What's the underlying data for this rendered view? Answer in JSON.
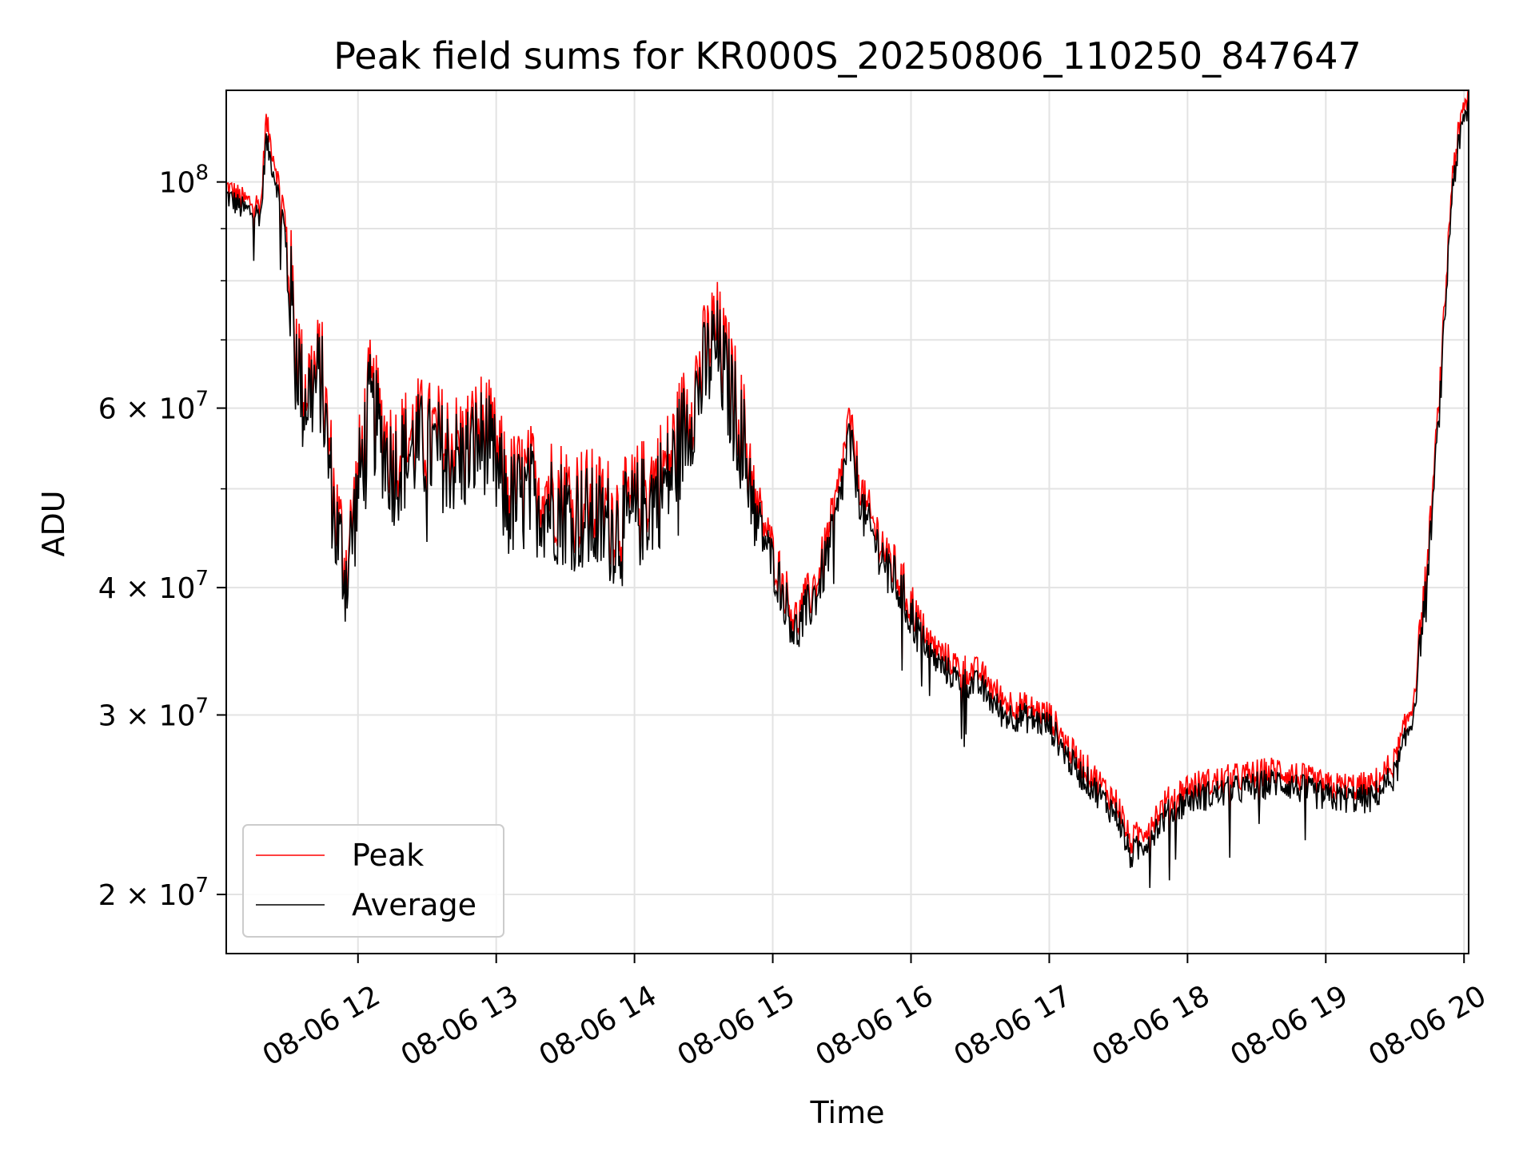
{
  "chart_data": {
    "type": "line",
    "title": "Peak field sums for KR000S_20250806_110250_847647",
    "xlabel": "Time",
    "ylabel": "ADU",
    "x_axis_kind": "time",
    "x_range": [
      "2025-08-06 11:02:50",
      "2025-08-06 20:02:00"
    ],
    "ylim": [
      17500000,
      123000000
    ],
    "yscale": "log",
    "grid": true,
    "legend_position": "lower-left",
    "x_ticks": [
      {
        "time": "2025-08-06 12:00",
        "label": "08-06 12"
      },
      {
        "time": "2025-08-06 13:00",
        "label": "08-06 13"
      },
      {
        "time": "2025-08-06 14:00",
        "label": "08-06 14"
      },
      {
        "time": "2025-08-06 15:00",
        "label": "08-06 15"
      },
      {
        "time": "2025-08-06 16:00",
        "label": "08-06 16"
      },
      {
        "time": "2025-08-06 17:00",
        "label": "08-06 17"
      },
      {
        "time": "2025-08-06 18:00",
        "label": "08-06 18"
      },
      {
        "time": "2025-08-06 19:00",
        "label": "08-06 19"
      },
      {
        "time": "2025-08-06 20:00",
        "label": "08-06 20"
      }
    ],
    "y_ticks_major": [
      {
        "value": 20000000,
        "base": "2 × 10",
        "exp": "7"
      },
      {
        "value": 30000000,
        "base": "3 × 10",
        "exp": "7"
      },
      {
        "value": 40000000,
        "base": "4 × 10",
        "exp": "7"
      },
      {
        "value": 60000000,
        "base": "6 × 10",
        "exp": "7"
      },
      {
        "value": 100000000,
        "base": "10",
        "exp": "8"
      }
    ],
    "y_gridlines": [
      20000000,
      30000000,
      40000000,
      50000000,
      60000000,
      70000000,
      80000000,
      90000000,
      100000000
    ],
    "series": [
      {
        "name": "Peak",
        "color": "#ff0000",
        "anchors": [
          [
            "2025-08-06 11:02:50",
            99000000
          ],
          [
            "2025-08-06 11:10",
            96000000
          ],
          [
            "2025-08-06 11:18",
            95000000
          ],
          [
            "2025-08-06 11:20",
            115000000
          ],
          [
            "2025-08-06 11:25",
            102000000
          ],
          [
            "2025-08-06 11:30",
            83000000
          ],
          [
            "2025-08-06 11:36",
            63000000
          ],
          [
            "2025-08-06 11:44",
            66000000
          ],
          [
            "2025-08-06 11:50",
            48000000
          ],
          [
            "2025-08-06 11:55",
            42000000
          ],
          [
            "2025-08-06 12:05",
            62000000
          ],
          [
            "2025-08-06 12:15",
            54000000
          ],
          [
            "2025-08-06 12:25",
            57000000
          ],
          [
            "2025-08-06 12:35",
            56000000
          ],
          [
            "2025-08-06 12:45",
            55000000
          ],
          [
            "2025-08-06 12:55",
            58000000
          ],
          [
            "2025-08-06 13:05",
            50000000
          ],
          [
            "2025-08-06 13:15",
            51000000
          ],
          [
            "2025-08-06 13:25",
            50000000
          ],
          [
            "2025-08-06 13:35",
            49000000
          ],
          [
            "2025-08-06 13:45",
            48000000
          ],
          [
            "2025-08-06 13:55",
            47000000
          ],
          [
            "2025-08-06 14:05",
            50000000
          ],
          [
            "2025-08-06 14:15",
            53000000
          ],
          [
            "2025-08-06 14:25",
            62000000
          ],
          [
            "2025-08-06 14:35",
            72000000
          ],
          [
            "2025-08-06 14:45",
            60000000
          ],
          [
            "2025-08-06 14:55",
            47000000
          ],
          [
            "2025-08-06 15:02",
            42000000
          ],
          [
            "2025-08-06 15:10",
            37000000
          ],
          [
            "2025-08-06 15:20",
            41000000
          ],
          [
            "2025-08-06 15:28",
            49000000
          ],
          [
            "2025-08-06 15:33",
            58000000
          ],
          [
            "2025-08-06 15:40",
            48000000
          ],
          [
            "2025-08-06 15:50",
            43000000
          ],
          [
            "2025-08-06 16:00",
            38500000
          ],
          [
            "2025-08-06 16:10",
            35000000
          ],
          [
            "2025-08-06 16:20",
            33500000
          ],
          [
            "2025-08-06 16:30",
            33000000
          ],
          [
            "2025-08-06 16:40",
            31000000
          ],
          [
            "2025-08-06 16:50",
            30500000
          ],
          [
            "2025-08-06 17:00",
            30000000
          ],
          [
            "2025-08-06 17:10",
            27500000
          ],
          [
            "2025-08-06 17:20",
            26000000
          ],
          [
            "2025-08-06 17:30",
            24500000
          ],
          [
            "2025-08-06 17:35",
            22500000
          ],
          [
            "2025-08-06 17:40",
            23000000
          ],
          [
            "2025-08-06 17:50",
            24500000
          ],
          [
            "2025-08-06 18:00",
            25500000
          ],
          [
            "2025-08-06 18:20",
            26000000
          ],
          [
            "2025-08-06 18:40",
            26500000
          ],
          [
            "2025-08-06 19:00",
            25500000
          ],
          [
            "2025-08-06 19:20",
            25500000
          ],
          [
            "2025-08-06 19:30",
            27000000
          ],
          [
            "2025-08-06 19:38",
            31000000
          ],
          [
            "2025-08-06 19:45",
            45000000
          ],
          [
            "2025-08-06 19:50",
            65000000
          ],
          [
            "2025-08-06 19:55",
            103000000
          ],
          [
            "2025-08-06 20:00",
            118000000
          ],
          [
            "2025-08-06 20:02",
            122000000
          ]
        ]
      },
      {
        "name": "Average",
        "color": "#000000",
        "anchors": [
          [
            "2025-08-06 11:02:50",
            97000000
          ],
          [
            "2025-08-06 11:10",
            94000000
          ],
          [
            "2025-08-06 11:18",
            93000000
          ],
          [
            "2025-08-06 11:20",
            110000000
          ],
          [
            "2025-08-06 11:25",
            99000000
          ],
          [
            "2025-08-06 11:30",
            80000000
          ],
          [
            "2025-08-06 11:36",
            61000000
          ],
          [
            "2025-08-06 11:44",
            64000000
          ],
          [
            "2025-08-06 11:50",
            46000000
          ],
          [
            "2025-08-06 11:55",
            41000000
          ],
          [
            "2025-08-06 12:05",
            60000000
          ],
          [
            "2025-08-06 12:15",
            52000000
          ],
          [
            "2025-08-06 12:25",
            55000000
          ],
          [
            "2025-08-06 12:35",
            54000000
          ],
          [
            "2025-08-06 12:45",
            53000000
          ],
          [
            "2025-08-06 12:55",
            56000000
          ],
          [
            "2025-08-06 13:05",
            48000000
          ],
          [
            "2025-08-06 13:15",
            49000000
          ],
          [
            "2025-08-06 13:25",
            48000000
          ],
          [
            "2025-08-06 13:35",
            47000000
          ],
          [
            "2025-08-06 13:45",
            46000000
          ],
          [
            "2025-08-06 13:55",
            45500000
          ],
          [
            "2025-08-06 14:05",
            48000000
          ],
          [
            "2025-08-06 14:15",
            51000000
          ],
          [
            "2025-08-06 14:25",
            60000000
          ],
          [
            "2025-08-06 14:35",
            69000000
          ],
          [
            "2025-08-06 14:45",
            58000000
          ],
          [
            "2025-08-06 14:55",
            45500000
          ],
          [
            "2025-08-06 15:02",
            41000000
          ],
          [
            "2025-08-06 15:10",
            36000000
          ],
          [
            "2025-08-06 15:20",
            40000000
          ],
          [
            "2025-08-06 15:28",
            47000000
          ],
          [
            "2025-08-06 15:33",
            56000000
          ],
          [
            "2025-08-06 15:40",
            46500000
          ],
          [
            "2025-08-06 15:50",
            42000000
          ],
          [
            "2025-08-06 16:00",
            37500000
          ],
          [
            "2025-08-06 16:10",
            34000000
          ],
          [
            "2025-08-06 16:20",
            32500000
          ],
          [
            "2025-08-06 16:30",
            32000000
          ],
          [
            "2025-08-06 16:40",
            30000000
          ],
          [
            "2025-08-06 16:50",
            29800000
          ],
          [
            "2025-08-06 17:00",
            29300000
          ],
          [
            "2025-08-06 17:10",
            26800000
          ],
          [
            "2025-08-06 17:20",
            25300000
          ],
          [
            "2025-08-06 17:30",
            23800000
          ],
          [
            "2025-08-06 17:35",
            21800000
          ],
          [
            "2025-08-06 17:40",
            22300000
          ],
          [
            "2025-08-06 17:50",
            23800000
          ],
          [
            "2025-08-06 18:00",
            24800000
          ],
          [
            "2025-08-06 18:20",
            25300000
          ],
          [
            "2025-08-06 18:40",
            25800000
          ],
          [
            "2025-08-06 19:00",
            24900000
          ],
          [
            "2025-08-06 19:20",
            24800000
          ],
          [
            "2025-08-06 19:30",
            26200000
          ],
          [
            "2025-08-06 19:38",
            30000000
          ],
          [
            "2025-08-06 19:45",
            43500000
          ],
          [
            "2025-08-06 19:50",
            63000000
          ],
          [
            "2025-08-06 19:55",
            100000000
          ],
          [
            "2025-08-06 20:00",
            115000000
          ],
          [
            "2025-08-06 20:02",
            119000000
          ]
        ]
      }
    ]
  }
}
